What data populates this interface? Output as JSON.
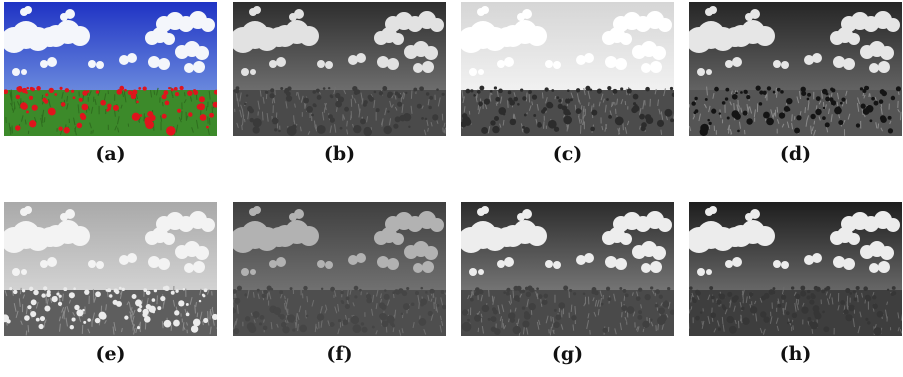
{
  "panels": [
    {
      "caption": "(a)",
      "sky_top": "#1f33c4",
      "sky_bottom": "#8fb4ea",
      "cloud": "#f4f6fb",
      "field": "#3c8a2a",
      "flower": "#e0141c",
      "stem": "#2f6d1f"
    },
    {
      "caption": "(b)",
      "sky_top": "#2e2e2e",
      "sky_bottom": "#8e8e8e",
      "cloud": "#e2e2e2",
      "field": "#4a4a4a",
      "flower": "#3a3a3a",
      "stem": "#707070"
    },
    {
      "caption": "(c)",
      "sky_top": "#d6d6d6",
      "sky_bottom": "#ffffff",
      "cloud": "#ffffff",
      "field": "#4c4c4c",
      "flower": "#2c2c2c",
      "stem": "#7a7a7a"
    },
    {
      "caption": "(d)",
      "sky_top": "#262626",
      "sky_bottom": "#828282",
      "cloud": "#e6e6e6",
      "field": "#555555",
      "flower": "#141414",
      "stem": "#8a8a8a"
    },
    {
      "caption": "(e)",
      "sky_top": "#a9a9a9",
      "sky_bottom": "#e8e8e8",
      "cloud": "#f3f3f3",
      "field": "#5e5e5e",
      "flower": "#ebebeb",
      "stem": "#8c8c8c"
    },
    {
      "caption": "(f)",
      "sky_top": "#3f3f3f",
      "sky_bottom": "#8a8a8a",
      "cloud": "#b2b2b2",
      "field": "#4e4e4e",
      "flower": "#454545",
      "stem": "#6e6e6e"
    },
    {
      "caption": "(g)",
      "sky_top": "#2c2c2c",
      "sky_bottom": "#999999",
      "cloud": "#ededed",
      "field": "#4a4a4a",
      "flower": "#404040",
      "stem": "#747474"
    },
    {
      "caption": "(h)",
      "sky_top": "#1e1e1e",
      "sky_bottom": "#8c8c8c",
      "cloud": "#ececec",
      "field": "#3e3e3e",
      "flower": "#363636",
      "stem": "#6a6a6a"
    }
  ]
}
